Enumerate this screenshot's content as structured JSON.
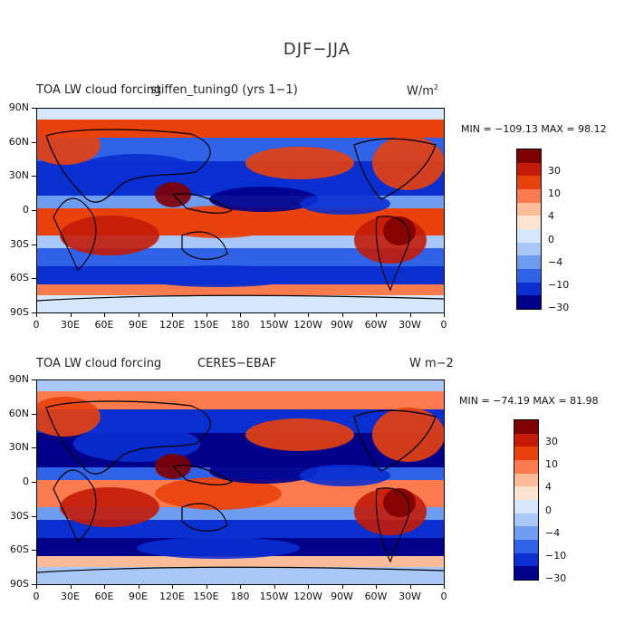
{
  "figure_title": "DJF−JJA",
  "chart_data": [
    {
      "type": "heatmap",
      "title_left": "TOA LW cloud forcing",
      "title_center": "stiffen_tuning0 (yrs 1−1)",
      "units": "W/m",
      "units_sup": "2",
      "stats": "MIN = −109.13   MAX =  98.12",
      "min": -109.13,
      "max": 98.12,
      "x_ticks": [
        "0",
        "30E",
        "60E",
        "90E",
        "120E",
        "150E",
        "180",
        "150W",
        "120W",
        "90W",
        "60W",
        "30W",
        "0"
      ],
      "y_ticks": [
        "90N",
        "60N",
        "30N",
        "0",
        "30S",
        "60S",
        "90S"
      ],
      "colorbar_labels": [
        "30",
        "10",
        "4",
        "0",
        "−4",
        "−10",
        "−30"
      ],
      "colors": [
        "#7f0000",
        "#c31b08",
        "#e8410c",
        "#fb7b4e",
        "#fdbb98",
        "#fde4d0",
        "#d6e6fb",
        "#a9c8f7",
        "#6e9df0",
        "#2f62e6",
        "#0a2fd0",
        "#00008b"
      ]
    },
    {
      "type": "heatmap",
      "title_left": "TOA LW cloud forcing",
      "title_center": "CERES−EBAF",
      "units": "W m−2",
      "units_sup": "",
      "stats": "MIN = −74.19   MAX =  81.98",
      "min": -74.19,
      "max": 81.98,
      "x_ticks": [
        "0",
        "30E",
        "60E",
        "90E",
        "120E",
        "150E",
        "180",
        "150W",
        "120W",
        "90W",
        "60W",
        "30W",
        "0"
      ],
      "y_ticks": [
        "90N",
        "60N",
        "30N",
        "0",
        "30S",
        "60S",
        "90S"
      ],
      "colorbar_labels": [
        "30",
        "10",
        "4",
        "0",
        "−4",
        "−10",
        "−30"
      ],
      "colors": [
        "#7f0000",
        "#c31b08",
        "#e8410c",
        "#fb7b4e",
        "#fdbb98",
        "#fde4d0",
        "#d6e6fb",
        "#a9c8f7",
        "#6e9df0",
        "#2f62e6",
        "#0a2fd0",
        "#00008b"
      ]
    }
  ]
}
